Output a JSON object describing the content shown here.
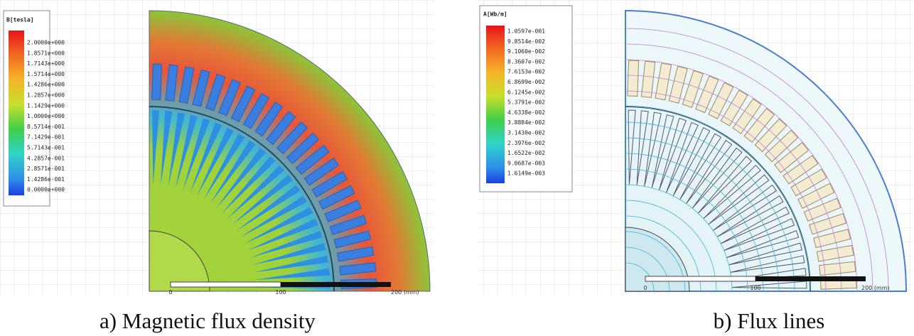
{
  "panel_a": {
    "legend": {
      "title": "B[tesla]",
      "labels": [
        "2.0000e+000",
        "1.8571e+000",
        "1.7143e+000",
        "1.5714e+000",
        "1.4286e+000",
        "1.2857e+000",
        "1.1429e+000",
        "1.0000e+000",
        "8.5714e-001",
        "7.1429e-001",
        "5.7143e-001",
        "4.2857e-001",
        "2.8571e-001",
        "1.4286e-001",
        "0.0000e+000"
      ]
    },
    "scale": [
      "0",
      "100",
      "200 (mm)"
    ],
    "caption": "a) Magnetic flux density"
  },
  "panel_b": {
    "legend": {
      "title": "A[Wb/m]",
      "labels": [
        "1.0597e-001",
        "9.8514e-002",
        "9.1060e-002",
        "8.3607e-002",
        "7.6153e-002",
        "6.8699e-002",
        "6.1245e-002",
        "5.3791e-002",
        "4.6338e-002",
        "3.8884e-002",
        "3.1430e-002",
        "2.3976e-002",
        "1.6522e-002",
        "9.0687e-003",
        "1.6149e-003"
      ]
    },
    "scale": [
      "0",
      "100",
      "200 (mm)"
    ],
    "caption": "b) Flux lines"
  }
}
